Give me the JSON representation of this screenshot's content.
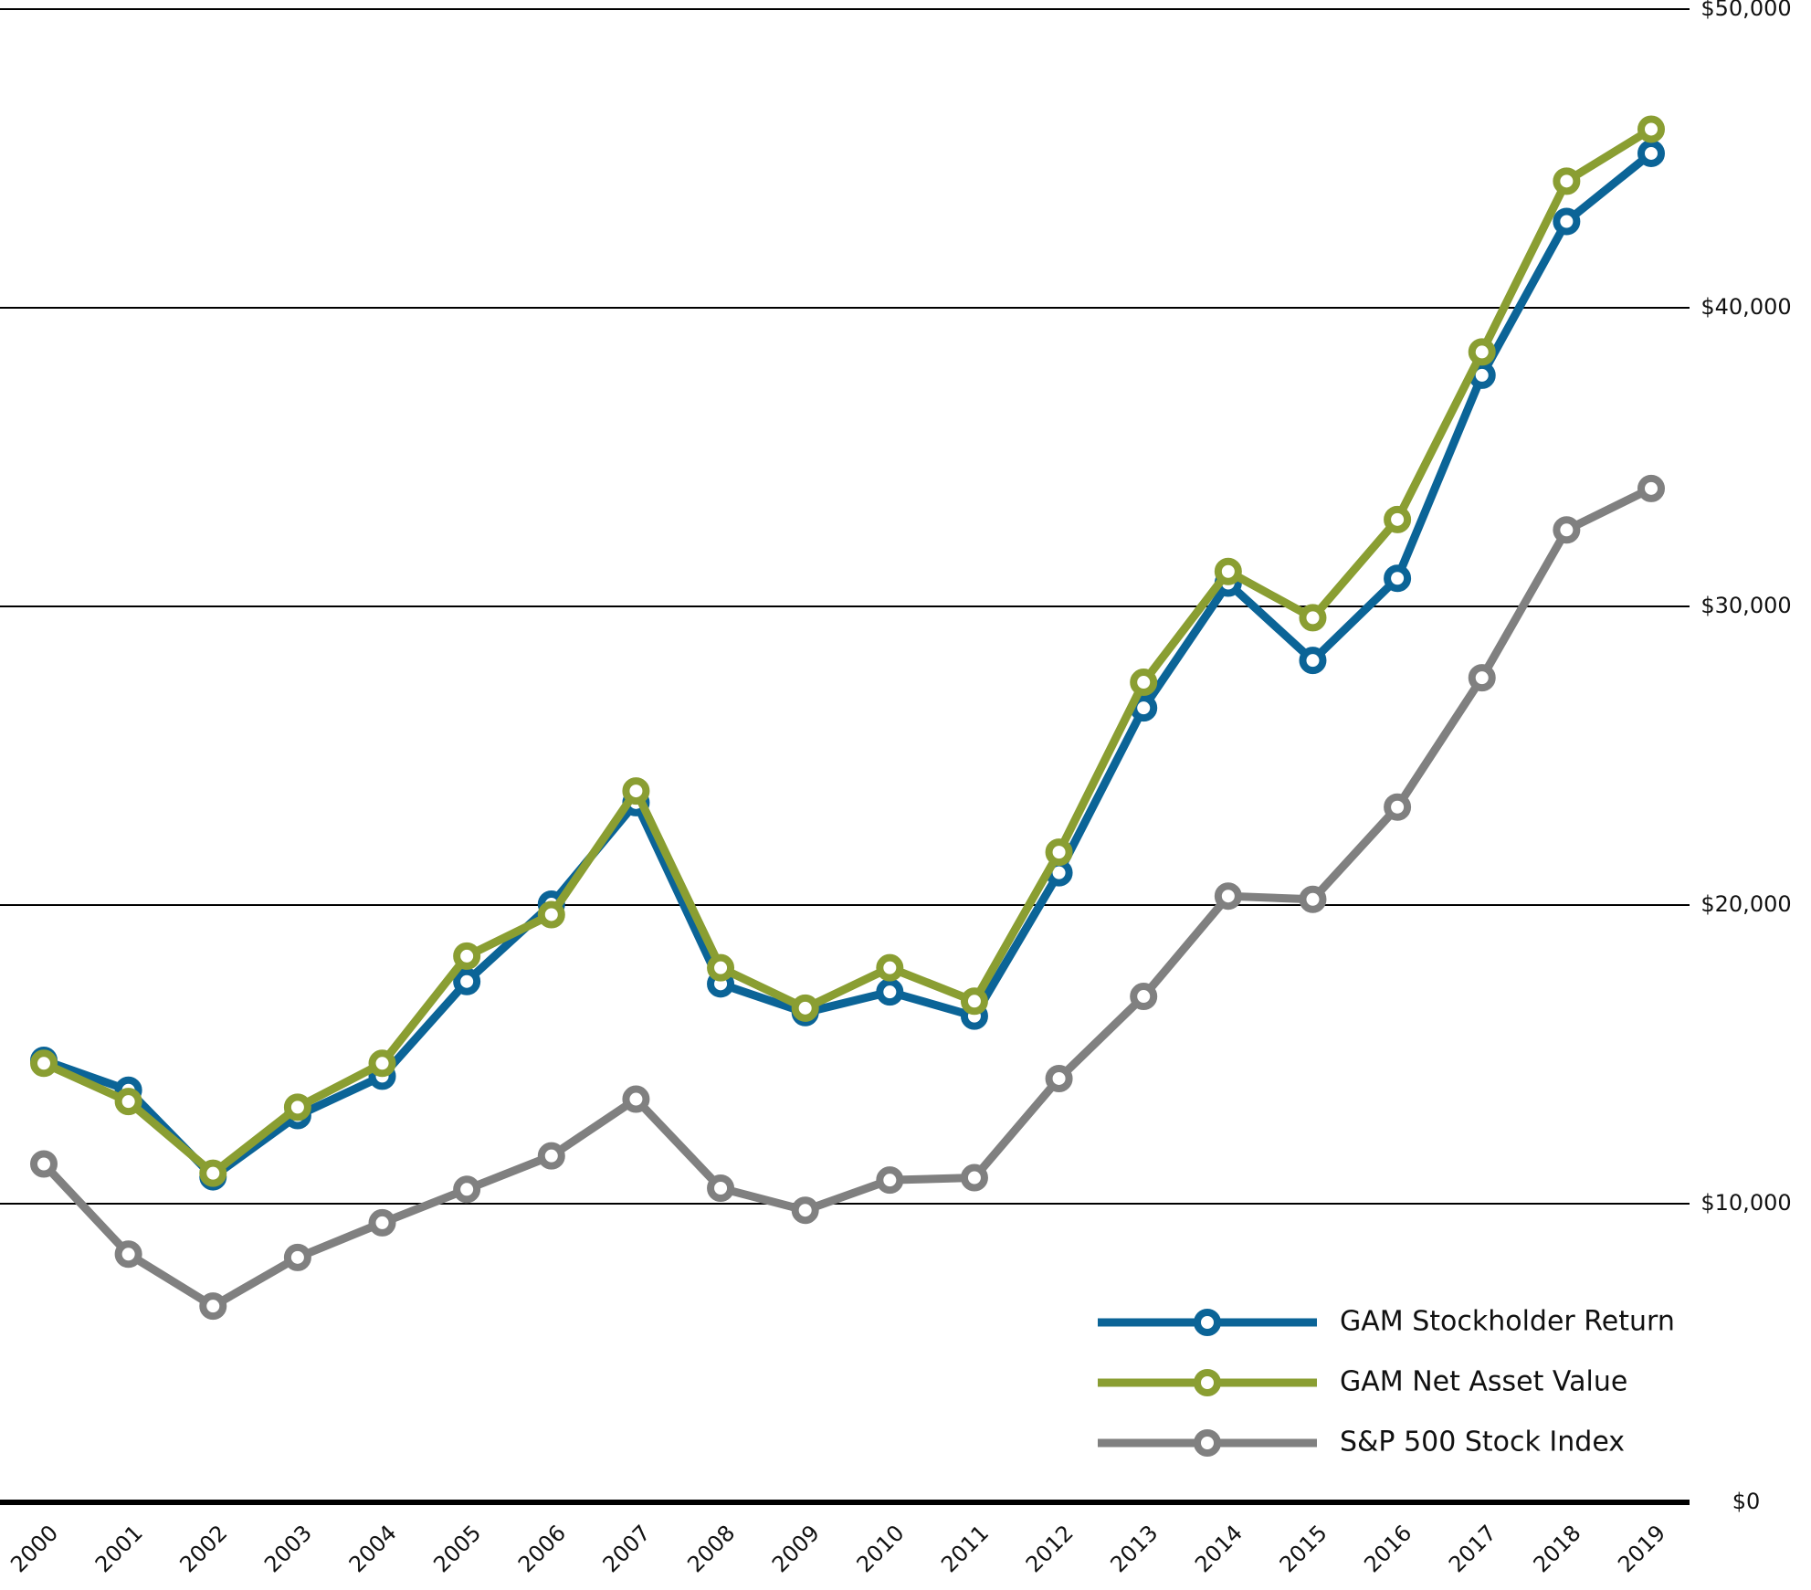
{
  "chart_data": {
    "type": "line",
    "categories": [
      "2000",
      "2001",
      "2002",
      "2003",
      "2004",
      "2005",
      "2006",
      "2007",
      "2008",
      "2009",
      "2010",
      "2011",
      "2012",
      "2013",
      "2014",
      "2015",
      "2016",
      "2017",
      "2018",
      "2019"
    ],
    "series": [
      {
        "name": "GAM Stockholder Return",
        "color": "#0b6497",
        "values": [
          14800,
          13800,
          10900,
          12950,
          14270,
          17440,
          20030,
          23430,
          17360,
          16400,
          17090,
          16280,
          21080,
          26600,
          30780,
          28190,
          30940,
          37740,
          42890,
          45170
        ]
      },
      {
        "name": "GAM Net Asset Value",
        "color": "#8a9e32",
        "values": [
          14700,
          13420,
          11020,
          13230,
          14700,
          18290,
          19680,
          23820,
          17900,
          16550,
          17900,
          16780,
          21770,
          27460,
          31170,
          29620,
          32910,
          38520,
          44240,
          45980
        ]
      },
      {
        "name": "S&P 500 Stock Index",
        "color": "#808080",
        "values": [
          11330,
          8310,
          6570,
          8200,
          9360,
          10480,
          11600,
          13500,
          10520,
          9780,
          10790,
          10870,
          14190,
          16940,
          20300,
          20190,
          23280,
          27610,
          32560,
          33950
        ]
      }
    ],
    "ylim": [
      0,
      50000
    ],
    "yticks": [
      {
        "value": 0,
        "label": "$0"
      },
      {
        "value": 10000,
        "label": "$10,000"
      },
      {
        "value": 20000,
        "label": "$20,000"
      },
      {
        "value": 30000,
        "label": "$30,000"
      },
      {
        "value": 40000,
        "label": "$40,000"
      },
      {
        "value": 50000,
        "label": "$50,000"
      }
    ],
    "grid": true,
    "legend": "lower-right"
  }
}
